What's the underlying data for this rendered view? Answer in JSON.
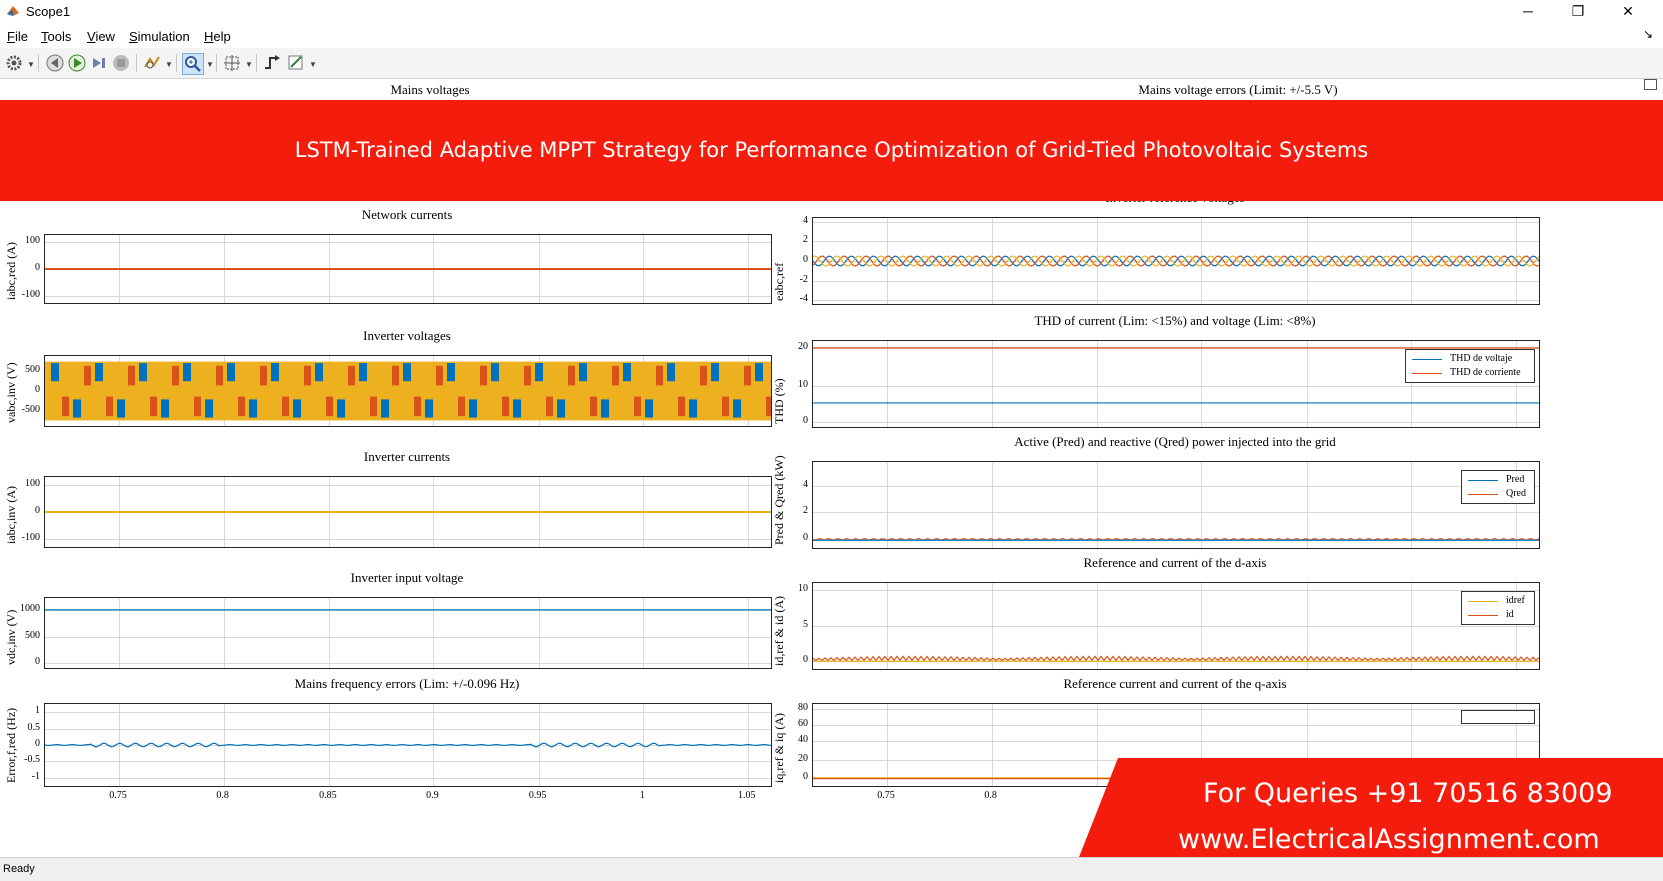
{
  "window": {
    "title": "Scope1",
    "minimize": "─",
    "maximize": "❐",
    "close": "✕",
    "undock": "↘"
  },
  "menu": [
    {
      "first": "F",
      "rest": "ile"
    },
    {
      "first": "T",
      "rest": "ools"
    },
    {
      "first": "V",
      "rest": "iew"
    },
    {
      "first": "S",
      "rest": "imulation"
    },
    {
      "first": "H",
      "rest": "elp"
    }
  ],
  "toolbar": [
    "settings-icon",
    "step-back-icon",
    "run-icon",
    "step-forward-icon",
    "stop-icon",
    "highlight-icon",
    "zoom-icon",
    "fit-axes-icon",
    "triggers-icon",
    "style-icon"
  ],
  "colors": {
    "blue": "#0072bd",
    "orange": "#d95319",
    "yellow": "#edb120",
    "banner": "#f41c0c"
  },
  "plots": {
    "mains_voltages": {
      "title": "Mains voltages"
    },
    "mains_voltage_errors": {
      "title": "Mains voltage errors (Limit: +/-5.5 V)"
    },
    "network_currents": {
      "title": "Network currents",
      "ylabel": "iabc,red (A)",
      "yticks": [
        "100",
        "0",
        "-100"
      ]
    },
    "inverter_reference_voltages": {
      "title": "Inverter reference voltages",
      "ylabel": "eabc,ref",
      "yticks": [
        "4",
        "2",
        "0",
        "-2",
        "-4"
      ]
    },
    "inverter_voltages": {
      "title": "Inverter voltages",
      "ylabel": "vabc,inv (V)",
      "yticks": [
        "500",
        "0",
        "-500"
      ]
    },
    "thd": {
      "title": "THD of current (Lim: <15%) and voltage (Lim: <8%)",
      "ylabel": "THD (%)",
      "yticks": [
        "20",
        "10",
        "0"
      ],
      "legend": [
        "THD de voltaje",
        "THD de corriente"
      ]
    },
    "inverter_currents": {
      "title": "Inverter currents",
      "ylabel": "iabc,inv (A)",
      "yticks": [
        "100",
        "0",
        "-100"
      ]
    },
    "power": {
      "title": "Active (Pred) and reactive (Qred) power injected into the grid",
      "ylabel": "Pred & Qred (kW)",
      "yticks": [
        "4",
        "2",
        "0"
      ],
      "legend": [
        "Pred",
        "Qred"
      ]
    },
    "inverter_input_voltage": {
      "title": "Inverter input voltage",
      "ylabel": "vdc,inv (V)",
      "yticks": [
        "1000",
        "500",
        "0"
      ]
    },
    "d_axis": {
      "title": "Reference and current of the d-axis",
      "ylabel": "id,ref & id (A)",
      "yticks": [
        "10",
        "5",
        "0"
      ],
      "legend": [
        "idref",
        "id"
      ]
    },
    "freq_errors": {
      "title": "Mains frequency errors (Lim: +/-0.096 Hz)",
      "ylabel": "Error,f,red (Hz)",
      "yticks": [
        "1",
        "0.5",
        "0",
        "-0.5",
        "-1"
      ]
    },
    "q_axis": {
      "title": "Reference current and current of the q-axis",
      "ylabel": "iq,ref & iq (A)",
      "yticks": [
        "80",
        "60",
        "40",
        "20",
        "0"
      ]
    }
  },
  "xticks_left": [
    "0.75",
    "0.8",
    "0.85",
    "0.9",
    "0.95",
    "1",
    "1.05"
  ],
  "xticks_right": [
    "0.75",
    "0.8"
  ],
  "banner": {
    "text": "LSTM-Trained Adaptive MPPT Strategy for Performance Optimization of Grid-Tied Photovoltaic Systems"
  },
  "queries": {
    "phone": "For Queries +91 70516 83009",
    "site": "www.ElectricalAssignment.com"
  },
  "status": {
    "text": "Ready"
  }
}
